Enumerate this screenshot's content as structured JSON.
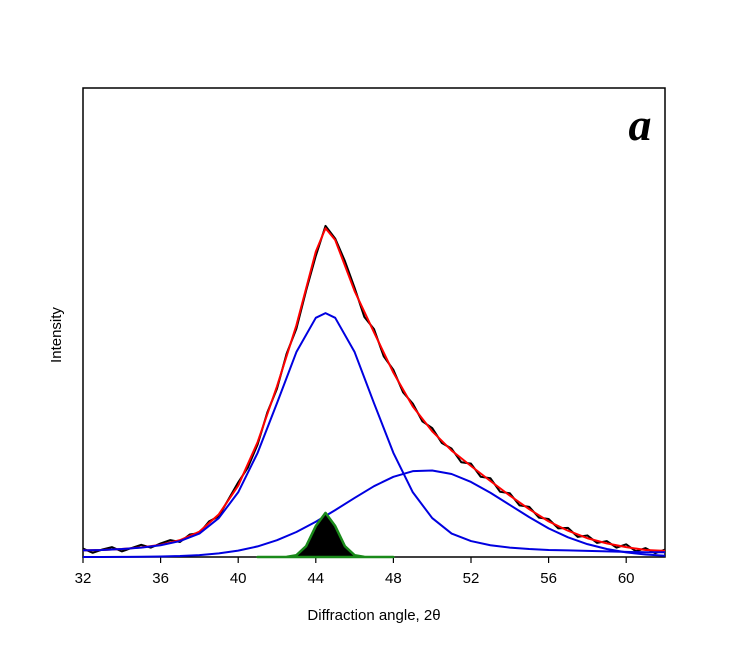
{
  "chart_data": {
    "type": "line",
    "annotation": "a",
    "x_label": "Diffraction angle, 2θ",
    "y_label": "Intensity",
    "xlim": [
      32,
      62
    ],
    "ylim": [
      0,
      100
    ],
    "xticks": [
      32,
      36,
      40,
      44,
      48,
      52,
      56,
      60
    ],
    "series": [
      {
        "color": "#000000",
        "x": [
          32,
          32.5,
          33,
          33.5,
          34,
          34.5,
          35,
          35.5,
          36,
          36.5,
          37,
          37.5,
          38,
          38.5,
          39,
          39.5,
          40,
          40.5,
          41,
          41.5,
          42,
          42.5,
          43,
          43.5,
          44,
          44.5,
          45,
          45.5,
          46,
          46.5,
          47,
          47.5,
          48,
          48.5,
          49,
          49.5,
          50,
          50.5,
          51,
          51.5,
          52,
          52.5,
          53,
          53.5,
          54,
          54.5,
          55,
          55.5,
          56,
          56.5,
          57,
          57.5,
          58,
          58.5,
          59,
          59.5,
          60,
          60.5,
          61,
          61.5,
          62
        ],
        "values": [
          1.8,
          0.9,
          1.6,
          2.1,
          1.2,
          1.9,
          2.6,
          2.0,
          2.9,
          3.6,
          3.2,
          4.8,
          5.1,
          7.6,
          8.7,
          12.3,
          15.9,
          19.1,
          24.0,
          30.8,
          35.9,
          43.4,
          48.7,
          56.8,
          64.2,
          70.6,
          67.9,
          63.1,
          57.4,
          51.2,
          48.6,
          42.8,
          39.9,
          35.1,
          32.7,
          28.9,
          27.5,
          24.3,
          23.1,
          20.2,
          19.9,
          17.1,
          16.8,
          13.9,
          13.6,
          11.0,
          10.7,
          8.4,
          8.1,
          6.1,
          6.2,
          4.3,
          4.6,
          3.0,
          3.4,
          2.0,
          2.7,
          1.2,
          1.9,
          0.8,
          1.6
        ]
      },
      {
        "color": "#ff0000",
        "x": [
          32,
          33,
          34,
          35,
          36,
          37,
          38,
          39,
          40,
          41,
          42,
          43,
          44,
          44.5,
          45,
          46,
          47,
          48,
          49,
          50,
          51,
          52,
          53,
          54,
          55,
          56,
          57,
          58,
          59,
          60,
          61,
          62
        ],
        "values": [
          1.4,
          1.5,
          1.7,
          2.05,
          2.6,
          3.6,
          5.4,
          9.1,
          15.2,
          24.5,
          36.4,
          49.4,
          65.1,
          70.1,
          67.6,
          56.7,
          47.9,
          39.3,
          32.1,
          26.8,
          22.7,
          19.4,
          16.2,
          13.1,
          10.2,
          7.6,
          5.6,
          4.0,
          2.9,
          2.1,
          1.5,
          1.3
        ]
      },
      {
        "color": "#0000e0",
        "x": [
          32,
          33,
          34,
          35,
          36,
          37,
          38,
          39,
          40,
          41,
          42,
          43,
          44,
          44.5,
          45,
          46,
          47,
          48,
          49,
          50,
          51,
          52,
          53,
          54,
          55,
          56,
          57,
          58,
          59,
          60,
          61,
          62
        ],
        "values": [
          1.4,
          1.5,
          1.7,
          2.0,
          2.5,
          3.4,
          5.0,
          8.3,
          13.8,
          22.2,
          32.8,
          43.7,
          51.0,
          52.0,
          51.0,
          43.7,
          32.8,
          22.2,
          13.8,
          8.3,
          5.0,
          3.4,
          2.5,
          2.0,
          1.7,
          1.5,
          1.4,
          1.3,
          1.2,
          1.1,
          1.0,
          1.0
        ]
      },
      {
        "color": "#0000e0",
        "x": [
          32,
          33,
          34,
          35,
          36,
          37,
          38,
          39,
          40,
          41,
          42,
          43,
          44,
          45,
          46,
          47,
          48,
          49,
          50,
          51,
          52,
          53,
          54,
          55,
          56,
          57,
          58,
          59,
          60,
          61,
          62
        ],
        "values": [
          0,
          0.01,
          0.02,
          0.05,
          0.1,
          0.21,
          0.41,
          0.78,
          1.36,
          2.26,
          3.58,
          5.33,
          7.52,
          10.0,
          12.6,
          15.1,
          17.1,
          18.3,
          18.45,
          17.7,
          16.0,
          13.7,
          11.1,
          8.5,
          6.1,
          4.2,
          2.74,
          1.7,
          0.98,
          0.54,
          0.28
        ]
      },
      {
        "color": "#1a8a1a",
        "fill": "#000000",
        "x": [
          41,
          42,
          42.5,
          43,
          43.5,
          44,
          44.5,
          45,
          45.5,
          46,
          46.5,
          47,
          48
        ],
        "values": [
          0,
          0.01,
          0.03,
          0.39,
          2.3,
          6.6,
          9.4,
          6.6,
          2.3,
          0.39,
          0.03,
          0.01,
          0
        ]
      }
    ]
  }
}
